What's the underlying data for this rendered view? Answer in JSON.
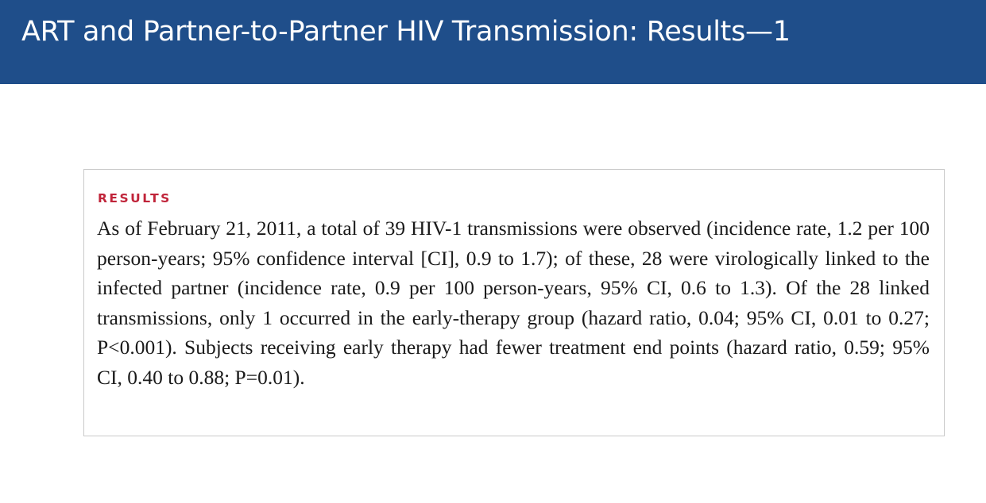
{
  "slide": {
    "title": "ART and Partner-to-Partner HIV Transmission: Results—1"
  },
  "abstract": {
    "section_label": "RESULTS",
    "body": "As of February 21, 2011, a total of 39 HIV-1 transmissions were observed (incidence rate, 1.2 per 100 person-years; 95% confidence interval [CI], 0.9 to 1.7); of these, 28 were virologically linked to the infected partner (incidence rate, 0.9 per 100 person-years, 95% CI, 0.6 to 1.3). Of the 28 linked transmissions, only 1 occurred in the early-therapy group (hazard ratio, 0.04; 95% CI, 0.01 to 0.27; P<0.001). Subjects receiving early therapy had fewer treatment end points (hazard ratio, 0.59; 95% CI, 0.40 to 0.88; P=0.01)."
  },
  "colors": {
    "title_bar": "#1f4e8a",
    "section_label": "#c0243a",
    "box_border": "#c9c9c9"
  }
}
